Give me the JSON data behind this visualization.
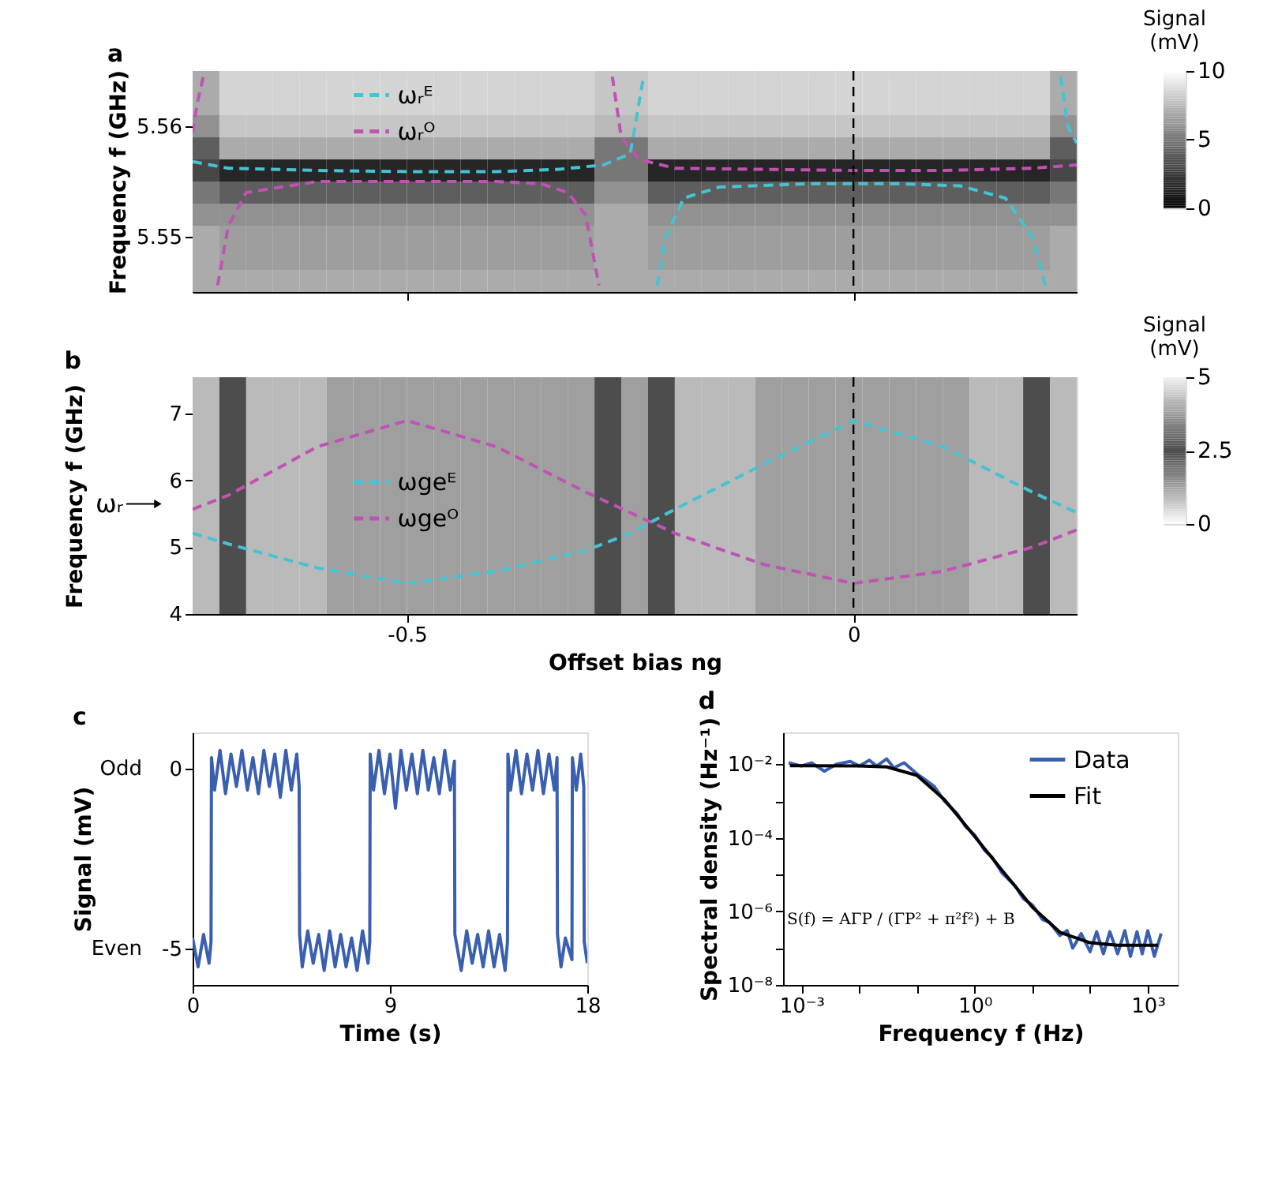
{
  "chart_data": [
    {
      "type": "heatmap",
      "title": "a",
      "ylabel": "Frequency f (GHz)",
      "clabel": "Signal (mV)",
      "clim": [
        0,
        10
      ],
      "cticks": [
        0,
        5,
        10
      ],
      "xlim": [
        -0.74,
        0.25
      ],
      "ylim": [
        5.545,
        5.565
      ],
      "xticks": [
        -0.5,
        0
      ],
      "yticks": [
        5.55,
        5.56
      ],
      "tick_labels": "y",
      "legend": "top left",
      "cells": [
        [
          7,
          8.5,
          8.5,
          8.5,
          8.5,
          8.5,
          8.5,
          8.5,
          8.5,
          8.5,
          8.5,
          8.5,
          8.5,
          8.5,
          8.5,
          8,
          8,
          8.5,
          8.5,
          8.5,
          8.5,
          8.5,
          8.5,
          8.5,
          8.5,
          8.5,
          8.5,
          8.5,
          8.5,
          8.5,
          8.5,
          8.5,
          7
        ],
        [
          7,
          8.5,
          8.5,
          8.5,
          8.5,
          8.5,
          8.5,
          8.5,
          8.5,
          8.5,
          8.5,
          8.5,
          8.5,
          8.5,
          8.5,
          8,
          8,
          8.5,
          8.5,
          8.5,
          8.5,
          8.5,
          8.5,
          8.5,
          8.5,
          8.5,
          8.5,
          8.5,
          8.5,
          8.5,
          8.5,
          8.5,
          7
        ],
        [
          6,
          8,
          8,
          8,
          8,
          8,
          8,
          8,
          8,
          8,
          8,
          8,
          8,
          8,
          8,
          7.5,
          7.5,
          8,
          8,
          8,
          8,
          8,
          8,
          8,
          8,
          8,
          8,
          8,
          8,
          8,
          8,
          8,
          6
        ],
        [
          4,
          7,
          7,
          7,
          7,
          7,
          7,
          7,
          7,
          7,
          7,
          7,
          7,
          7,
          7,
          5,
          5,
          7,
          7,
          7,
          7,
          7,
          7,
          7,
          7,
          7,
          7,
          7,
          7,
          7,
          7,
          7,
          4
        ],
        [
          3,
          1.5,
          1.5,
          1.5,
          1.5,
          1.5,
          1.5,
          1.5,
          1.5,
          1.5,
          1.5,
          1.5,
          1.5,
          1.5,
          1.5,
          5,
          5,
          1.5,
          1.5,
          1.5,
          1.5,
          1.5,
          1.5,
          1.5,
          1.5,
          1.5,
          1.5,
          1.5,
          1.5,
          1.5,
          1.5,
          1.5,
          3
        ],
        [
          5,
          4,
          4,
          4,
          4,
          4,
          4,
          4,
          4,
          4,
          4,
          4,
          4,
          4,
          4,
          6,
          6,
          4,
          4,
          4,
          4,
          4,
          4,
          4,
          4,
          4,
          4,
          4,
          4,
          4,
          4,
          4,
          5
        ],
        [
          6,
          6,
          6,
          6,
          6,
          6,
          6,
          6,
          6,
          6,
          6,
          6,
          6,
          6,
          6,
          7,
          7,
          6,
          6,
          6,
          6,
          6,
          6,
          6,
          6,
          6,
          6,
          6,
          6,
          6,
          6,
          6,
          6
        ],
        [
          7,
          6.5,
          6.5,
          6.5,
          6.5,
          6.5,
          6.5,
          6.5,
          6.5,
          6.5,
          6.5,
          6.5,
          6.5,
          6.5,
          6.5,
          7,
          7,
          6.5,
          6.5,
          6.5,
          6.5,
          6.5,
          6.5,
          6.5,
          6.5,
          6.5,
          6.5,
          6.5,
          6.5,
          6.5,
          6.5,
          6.5,
          7
        ],
        [
          7,
          6.5,
          6.5,
          6.5,
          6.5,
          6.5,
          6.5,
          6.5,
          6.5,
          6.5,
          6.5,
          6.5,
          6.5,
          6.5,
          6.5,
          7,
          7,
          6.5,
          6.5,
          6.5,
          6.5,
          6.5,
          6.5,
          6.5,
          6.5,
          6.5,
          6.5,
          6.5,
          6.5,
          6.5,
          6.5,
          6.5,
          7
        ],
        [
          7,
          7,
          7,
          7,
          7,
          7,
          7,
          7,
          7,
          7,
          7,
          7,
          7,
          7,
          7,
          7,
          7,
          7,
          7,
          7,
          7,
          7,
          7,
          7,
          7,
          7,
          7,
          7,
          7,
          7,
          7,
          7,
          7
        ]
      ],
      "series": [
        {
          "type": "line",
          "name": "ωᵣᴱ",
          "color": "#45c3d3",
          "line_style": "dashed",
          "x": [
            -0.74,
            -0.7,
            -0.6,
            -0.5,
            -0.4,
            -0.33,
            -0.28,
            -0.25,
            -0.235,
            null,
            -0.22,
            -0.21,
            -0.19,
            -0.15,
            -0.05,
            0.05,
            0.12,
            0.17,
            0.2,
            0.215,
            null,
            0.232,
            0.24,
            0.25
          ],
          "values": [
            5.5568,
            5.5562,
            5.556,
            5.5559,
            5.5559,
            5.5561,
            5.5565,
            5.5575,
            5.5645,
            null,
            5.5456,
            5.55,
            5.5535,
            5.5545,
            5.5548,
            5.5548,
            5.5546,
            5.5535,
            5.55,
            5.5456,
            null,
            5.5645,
            5.56,
            5.5585
          ]
        },
        {
          "type": "line",
          "name": "ωᵣᴼ",
          "color": "#c052b4",
          "line_style": "dashed",
          "x": [
            -0.74,
            -0.735,
            -0.728,
            null,
            -0.712,
            -0.7,
            -0.68,
            -0.6,
            -0.5,
            -0.4,
            -0.35,
            -0.32,
            -0.3,
            -0.285,
            null,
            -0.27,
            -0.26,
            -0.24,
            -0.2,
            -0.1,
            0,
            0.1,
            0.2,
            0.25
          ],
          "values": [
            5.5594,
            5.562,
            5.5645,
            null,
            5.5456,
            5.551,
            5.554,
            5.555,
            5.555,
            5.555,
            5.5548,
            5.554,
            5.552,
            5.5456,
            null,
            5.5645,
            5.559,
            5.557,
            5.5562,
            5.5561,
            5.556,
            5.556,
            5.5562,
            5.5565
          ]
        }
      ],
      "ref_lines": [
        {
          "axis": "x",
          "value": 0,
          "color": "#000000",
          "line_style": "dashed"
        }
      ]
    },
    {
      "type": "heatmap",
      "title": "b",
      "xlabel": "Offset bias ng",
      "ylabel": "Frequency f (GHz)",
      "clabel": "Signal (mV)",
      "clim": [
        0,
        5
      ],
      "cticks": [
        0,
        2.5,
        5
      ],
      "xlim": [
        -0.74,
        0.25
      ],
      "ylim": [
        4,
        7.55
      ],
      "xticks": [
        -0.5,
        0
      ],
      "yticks": [
        4,
        5,
        6,
        7
      ],
      "legend": "left",
      "cells": [
        [
          4.2,
          2.5,
          4.2,
          4.2,
          4.2,
          3.8,
          3.8,
          3.8,
          3.8,
          3.8,
          3.8,
          3.8,
          3.8,
          3.8,
          3.8,
          2.5,
          3.8,
          2.5,
          4.2,
          4.2,
          4.2,
          3.8,
          3.8,
          3.8,
          3.8,
          3.8,
          3.8,
          3.8,
          3.8,
          4.2,
          4.2,
          2.5,
          4.2
        ]
      ],
      "series": [
        {
          "type": "line",
          "name": "ωgeᴱ",
          "color": "#45c3d3",
          "line_style": "dashed",
          "x": [
            -0.74,
            -0.7,
            -0.6,
            -0.5,
            -0.4,
            -0.3,
            -0.25,
            -0.2,
            -0.1,
            0,
            0.1,
            0.2,
            0.25
          ],
          "values": [
            5.21,
            5.05,
            4.69,
            4.46,
            4.64,
            4.95,
            5.21,
            5.57,
            6.25,
            6.9,
            6.51,
            5.83,
            5.52
          ]
        },
        {
          "type": "line",
          "name": "ωgeᴼ",
          "color": "#c052b4",
          "line_style": "dashed",
          "x": [
            -0.74,
            -0.7,
            -0.6,
            -0.5,
            -0.4,
            -0.3,
            -0.25,
            -0.2,
            -0.1,
            0,
            0.1,
            0.2,
            0.25
          ],
          "values": [
            5.57,
            5.78,
            6.51,
            6.9,
            6.51,
            5.83,
            5.52,
            5.21,
            4.74,
            4.46,
            4.64,
            5.0,
            5.26
          ]
        }
      ],
      "ref_lines": [
        {
          "axis": "x",
          "value": 0,
          "color": "#000000",
          "line_style": "dashed"
        }
      ],
      "annotations": [
        "ωᵣ"
      ]
    },
    {
      "type": "line",
      "title": "c",
      "xlabel": "Time (s)",
      "ylabel": "Signal (mV)",
      "xlim": [
        0,
        18
      ],
      "ylim": [
        -6,
        1
      ],
      "xticks": [
        0,
        9,
        18
      ],
      "yticks": [
        0,
        -5
      ],
      "annotations": [
        "Odd",
        "Even"
      ],
      "series": [
        {
          "color": "#3a5fb0",
          "line_style": "solid",
          "x": [
            0,
            0.25,
            0.5,
            0.75,
            0.84,
            0.86,
            1.0,
            1.25,
            1.5,
            1.75,
            2.0,
            2.25,
            2.5,
            2.75,
            3.0,
            3.25,
            3.5,
            3.75,
            4.0,
            4.25,
            4.5,
            4.75,
            4.86,
            4.88,
            5.0,
            5.25,
            5.5,
            5.75,
            6.0,
            6.25,
            6.5,
            6.75,
            7.0,
            7.25,
            7.5,
            7.75,
            8.0,
            8.08,
            8.1,
            8.25,
            8.5,
            8.75,
            9.0,
            9.25,
            9.5,
            9.75,
            10.0,
            10.25,
            10.5,
            10.75,
            11.0,
            11.25,
            11.5,
            11.75,
            11.94,
            11.96,
            12.25,
            12.5,
            12.75,
            13.0,
            13.25,
            13.5,
            13.75,
            14.0,
            14.25,
            14.36,
            14.38,
            14.5,
            14.75,
            15.0,
            15.25,
            15.5,
            15.75,
            16.0,
            16.25,
            16.5,
            16.62,
            16.64,
            16.8,
            17.0,
            17.3,
            17.32,
            17.5,
            17.7,
            17.84,
            17.86,
            18.0
          ],
          "values": [
            -4.7,
            -5.5,
            -4.6,
            -5.4,
            -4.8,
            0.3,
            -0.6,
            0.5,
            -0.7,
            0.4,
            -0.5,
            0.5,
            -0.6,
            0.3,
            -0.7,
            0.5,
            -0.5,
            0.4,
            -0.8,
            0.5,
            -0.6,
            0.4,
            -0.5,
            -4.6,
            -5.5,
            -4.5,
            -5.4,
            -4.6,
            -5.6,
            -4.5,
            -5.5,
            -4.6,
            -5.5,
            -4.7,
            -5.6,
            -4.5,
            -5.4,
            -4.8,
            0.4,
            -0.6,
            0.5,
            -0.7,
            0.4,
            -1.1,
            0.5,
            -0.6,
            0.4,
            -0.7,
            0.5,
            -0.6,
            0.3,
            -0.7,
            0.5,
            -0.6,
            0.2,
            -4.6,
            -5.6,
            -4.5,
            -5.4,
            -4.6,
            -5.5,
            -4.5,
            -5.5,
            -4.6,
            -5.6,
            -4.8,
            0.4,
            -0.6,
            0.5,
            -0.7,
            0.4,
            -0.6,
            0.5,
            -0.7,
            0.4,
            -0.6,
            0.3,
            -4.6,
            -5.5,
            -4.7,
            -5.3,
            0.3,
            -0.6,
            0.4,
            -0.5,
            -4.8,
            -5.4
          ]
        }
      ]
    },
    {
      "type": "line",
      "title": "d",
      "xlabel": "Frequency f (Hz)",
      "ylabel": "Spectral density (Hz⁻¹)",
      "log": "xy",
      "legend": "top right",
      "xlim": [
        0.00048,
        3300
      ],
      "ylim": [
        1e-08,
        0.074
      ],
      "xticks": [
        {
          "value": 0.001,
          "label": "10⁻³"
        },
        {
          "value": 0.01,
          "label": null
        },
        {
          "value": 0.1,
          "label": null
        },
        {
          "value": 1,
          "label": "10⁰"
        },
        {
          "value": 10,
          "label": null
        },
        {
          "value": 100,
          "label": null
        },
        {
          "value": 1000,
          "label": "10³"
        }
      ],
      "yticks": [
        {
          "value": 1e-08,
          "label": "10⁻⁸"
        },
        {
          "value": 1e-07,
          "label": null
        },
        {
          "value": 1e-06,
          "label": "10⁻⁶"
        },
        {
          "value": 1e-05,
          "label": null
        },
        {
          "value": 0.0001,
          "label": "10⁻⁴"
        },
        {
          "value": 0.001,
          "label": null
        },
        {
          "value": 0.01,
          "label": "10⁻²"
        }
      ],
      "series": [
        {
          "name": "Data",
          "color": "#3a5fb0",
          "line_style": "solid",
          "x": [
            0.0006,
            0.001,
            0.0015,
            0.0025,
            0.004,
            0.007,
            0.01,
            0.015,
            0.02,
            0.03,
            0.04,
            0.06,
            0.1,
            0.15,
            0.2,
            0.3,
            0.5,
            0.7,
            1,
            1.5,
            2,
            3,
            5,
            7,
            10,
            15,
            20,
            30,
            40,
            50,
            70,
            100,
            130,
            170,
            220,
            300,
            400,
            500,
            650,
            800,
            1000,
            1300,
            1700
          ],
          "values": [
            0.011,
            0.009,
            0.011,
            0.0065,
            0.01,
            0.012,
            0.009,
            0.013,
            0.009,
            0.014,
            0.008,
            0.011,
            0.0055,
            0.0035,
            0.0025,
            0.001,
            0.00045,
            0.0002,
            0.00012,
            4.5e-05,
            3e-05,
            1.1e-05,
            5e-06,
            2.2e-06,
            1.5e-06,
            6e-07,
            5e-07,
            2.2e-07,
            3e-07,
            1e-07,
            2.5e-07,
            8e-08,
            2.8e-07,
            7e-08,
            2.8e-07,
            7e-08,
            3e-07,
            6e-08,
            2.8e-07,
            7e-08,
            3e-07,
            6e-08,
            2.5e-07
          ]
        },
        {
          "name": "Fit",
          "color": "#000000",
          "line_style": "solid",
          "x": [
            0.00063,
            0.001,
            0.01,
            0.03,
            0.1,
            0.3,
            1,
            3,
            10,
            30,
            100,
            300,
            1500
          ],
          "values": [
            0.0092,
            0.0092,
            0.0091,
            0.0085,
            0.005,
            0.0011,
            0.00011,
            1.3e-05,
            1.3e-06,
            2.7e-07,
            1.4e-07,
            1.2e-07,
            1.2e-07
          ]
        }
      ],
      "annotations": [
        "S(f) = AΓP / (ΓP² + π²f²) + B"
      ]
    }
  ]
}
